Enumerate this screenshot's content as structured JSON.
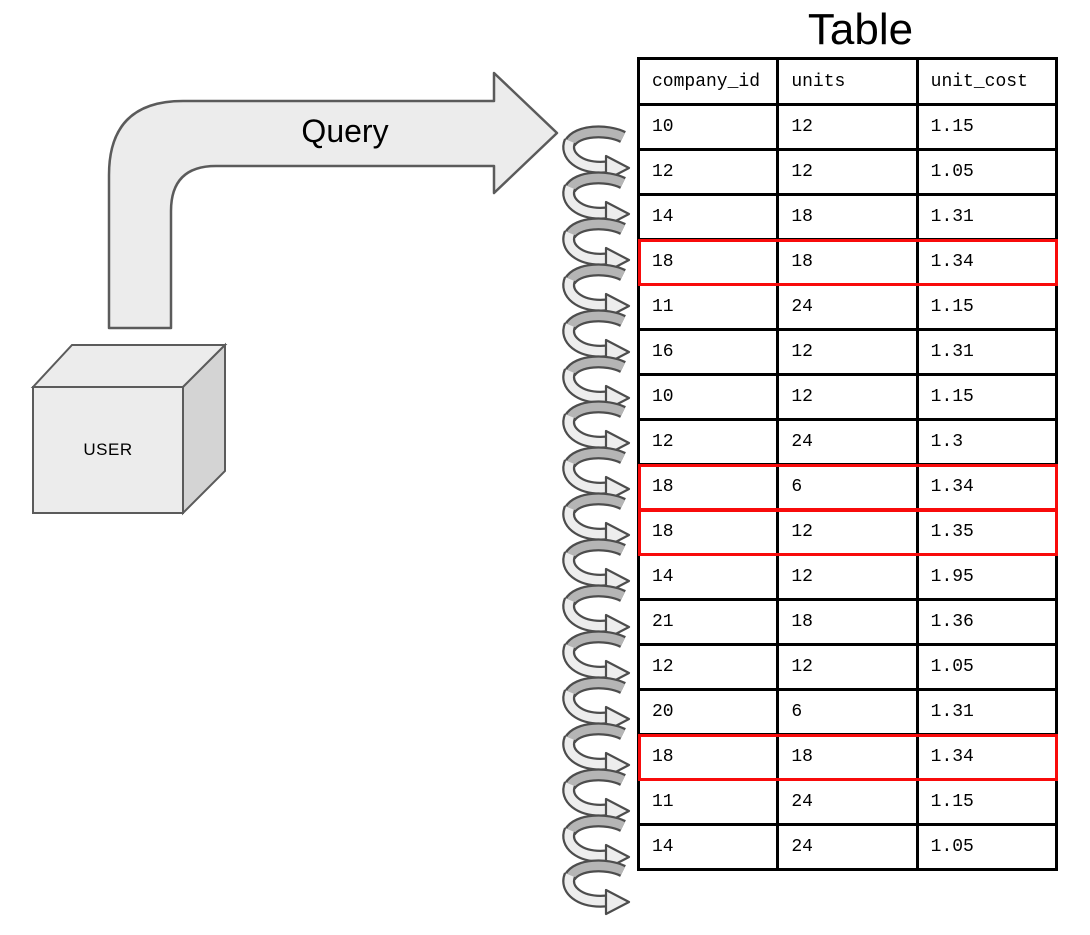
{
  "title": "Table",
  "diagram": {
    "user_box": {
      "label": "USER"
    },
    "query_arrow": {
      "label": "Query"
    },
    "loop_count": 17
  },
  "table": {
    "columns": [
      "company_id",
      "units",
      "unit_cost"
    ],
    "rows": [
      [
        "10",
        "12",
        "1.15"
      ],
      [
        "12",
        "12",
        "1.05"
      ],
      [
        "14",
        "18",
        "1.31"
      ],
      [
        "18",
        "18",
        "1.34"
      ],
      [
        "11",
        "24",
        "1.15"
      ],
      [
        "16",
        "12",
        "1.31"
      ],
      [
        "10",
        "12",
        "1.15"
      ],
      [
        "12",
        "24",
        "1.3"
      ],
      [
        "18",
        "6",
        "1.34"
      ],
      [
        "18",
        "12",
        "1.35"
      ],
      [
        "14",
        "12",
        "1.95"
      ],
      [
        "21",
        "18",
        "1.36"
      ],
      [
        "12",
        "12",
        "1.05"
      ],
      [
        "20",
        "6",
        "1.31"
      ],
      [
        "18",
        "18",
        "1.34"
      ],
      [
        "11",
        "24",
        "1.15"
      ],
      [
        "14",
        "24",
        "1.05"
      ]
    ],
    "highlighted_row_indices": [
      3,
      8,
      9,
      14
    ]
  },
  "colors": {
    "highlight": "#f80b0b",
    "table_border": "#000000",
    "shape_fill": "#ececec",
    "shape_fill_dark": "#d4d4d4",
    "shape_stroke": "#5b5b5b",
    "coil_dark": "#b5b5b5",
    "coil_light": "#ededed",
    "coil_outline": "#4d4d4d"
  }
}
